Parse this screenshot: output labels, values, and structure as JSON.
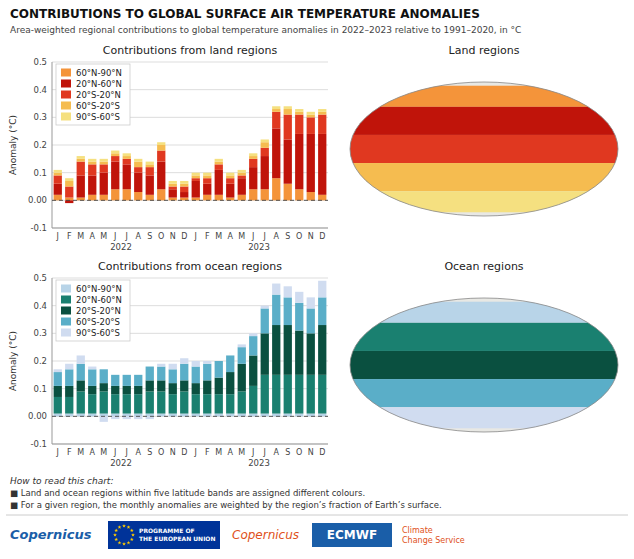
{
  "chart_data": [
    {
      "type": "bar",
      "stacked": true,
      "grid": true,
      "legend": "upper left",
      "title": "Contributions from land regions",
      "y_label": "Anomaly (°C)",
      "categories": [
        "J",
        "F",
        "M",
        "A",
        "M",
        "J",
        "J",
        "A",
        "S",
        "O",
        "N",
        "D",
        "J",
        "F",
        "M",
        "A",
        "M",
        "J",
        "J",
        "A",
        "S",
        "O",
        "N",
        "D"
      ],
      "series": [
        {
          "name": "60°N-90°N",
          "color": "#F4943A",
          "values": [
            0.02,
            0.01,
            0.01,
            0.02,
            0.02,
            0.04,
            0.04,
            0.03,
            0.02,
            0.04,
            0.01,
            0.01,
            0.01,
            0.02,
            0.02,
            0.01,
            0.02,
            0.04,
            0.04,
            0.08,
            0.06,
            0.04,
            0.03,
            0.02
          ]
        },
        {
          "name": "20°N-60°N",
          "color": "#C0140A",
          "values": [
            0.04,
            -0.01,
            0.08,
            0.07,
            0.08,
            0.1,
            0.09,
            0.07,
            0.07,
            0.1,
            0.03,
            0.02,
            0.06,
            0.04,
            0.09,
            0.05,
            0.06,
            0.08,
            0.12,
            0.18,
            0.16,
            0.2,
            0.21,
            0.22
          ]
        },
        {
          "name": "20°S-20°N",
          "color": "#E03820",
          "values": [
            0.03,
            0.04,
            0.05,
            0.04,
            0.03,
            0.02,
            0.02,
            0.02,
            0.03,
            0.04,
            0.01,
            0.02,
            0.01,
            0.02,
            0.02,
            0.02,
            0.01,
            0.03,
            0.03,
            0.06,
            0.09,
            0.07,
            0.06,
            0.07
          ]
        },
        {
          "name": "60°S-20°S",
          "color": "#F5BC50",
          "values": [
            0.01,
            0.02,
            0.01,
            0.01,
            0.01,
            0.01,
            0.01,
            0.02,
            0.01,
            0.02,
            0.01,
            0.01,
            0.01,
            0.01,
            0.01,
            0.01,
            0.01,
            0.01,
            0.02,
            0.01,
            0.02,
            0.01,
            0.01,
            0.01
          ]
        },
        {
          "name": "90°S-60°S",
          "color": "#F5E080",
          "values": [
            0.01,
            0.01,
            0.01,
            0.01,
            0.01,
            0.01,
            0.01,
            0.01,
            0.01,
            0.01,
            0.01,
            0.01,
            0.01,
            0.01,
            0.01,
            0.01,
            0.01,
            0.01,
            0.01,
            0.01,
            0.01,
            0.01,
            0.01,
            0.01
          ]
        }
      ],
      "ylim": [
        -0.1,
        0.5
      ],
      "yticks": [
        -0.1,
        {
          "value": 0.0,
          "label": "0.00"
        },
        0.1,
        0.2,
        0.3,
        0.4,
        0.5
      ],
      "annotations": [
        {
          "text": "2022"
        },
        {
          "text": "2023"
        },
        {
          "text": "Land regions"
        },
        {
          "text": "CONTRIBUTIONS TO GLOBAL SURFACE AIR TEMPERATURE ANOMALIES"
        },
        {
          "text": "Area-weighted regional contributions to global temperature anomalies in 2022–2023 relative to 1991–2020, in °C"
        },
        {
          "text": "How to read this chart:"
        },
        {
          "text": "■ Land and ocean regions within five latitude bands are assigned different colours."
        },
        {
          "text": "■ For a given region, the monthly anomalies are weighted by the region’s fraction of Earth’s surface."
        },
        {
          "text": "Copernicus"
        },
        {
          "text": "PROGRAMME OF\nTHE EUROPEAN UNION"
        },
        {
          "text": "Copernicus"
        },
        {
          "text": "ECMWF"
        },
        {
          "text": "Climate\nChange Service"
        }
      ]
    },
    {
      "type": "bar",
      "stacked": true,
      "grid": true,
      "legend": "upper left",
      "title": "Contributions from ocean regions",
      "y_label": "Anomaly (°C)",
      "categories": [
        "J",
        "F",
        "M",
        "A",
        "M",
        "J",
        "J",
        "A",
        "S",
        "O",
        "N",
        "D",
        "J",
        "F",
        "M",
        "A",
        "M",
        "J",
        "J",
        "A",
        "S",
        "O",
        "N",
        "D"
      ],
      "series": [
        {
          "name": "60°N-90°N",
          "color": "#B8D4E8",
          "values": [
            0.01,
            0.01,
            0.01,
            0.01,
            0.01,
            0.01,
            0.01,
            0.01,
            0.01,
            0.01,
            0.01,
            0.01,
            0.01,
            0.01,
            0.01,
            0.01,
            0.01,
            0.01,
            0.01,
            0.01,
            0.01,
            0.01,
            0.01,
            0.01
          ]
        },
        {
          "name": "20°N-60°N",
          "color": "#1A8070",
          "values": [
            0.06,
            0.06,
            0.08,
            0.07,
            0.08,
            0.07,
            0.07,
            0.07,
            0.08,
            0.08,
            0.07,
            0.08,
            0.07,
            0.07,
            0.07,
            0.07,
            0.08,
            0.1,
            0.14,
            0.14,
            0.14,
            0.14,
            0.14,
            0.14
          ]
        },
        {
          "name": "20°S-20°N",
          "color": "#0A5040",
          "values": [
            0.04,
            0.04,
            0.04,
            0.03,
            0.03,
            0.03,
            0.03,
            0.03,
            0.04,
            0.04,
            0.04,
            0.04,
            0.04,
            0.05,
            0.06,
            0.08,
            0.1,
            0.11,
            0.15,
            0.18,
            0.18,
            0.16,
            0.15,
            0.18
          ]
        },
        {
          "name": "60°S-20°S",
          "color": "#5AAEC8",
          "values": [
            0.05,
            0.06,
            0.06,
            0.06,
            0.05,
            0.04,
            0.04,
            0.04,
            0.05,
            0.05,
            0.05,
            0.06,
            0.06,
            0.06,
            0.06,
            0.06,
            0.06,
            0.07,
            0.09,
            0.11,
            0.1,
            0.1,
            0.09,
            0.1
          ]
        },
        {
          "name": "90°S-60°S",
          "color": "#D0DCF0",
          "values": [
            0.01,
            0.02,
            0.03,
            0.01,
            -0.02,
            -0.01,
            -0.01,
            -0.01,
            -0.01,
            0.01,
            0.02,
            0.02,
            0.02,
            0.01,
            0.0,
            0.0,
            0.01,
            0.01,
            0.01,
            0.04,
            0.04,
            0.04,
            0.04,
            0.06
          ]
        }
      ],
      "ylim": [
        -0.1,
        0.5
      ],
      "yticks": [
        -0.1,
        {
          "value": 0.0,
          "label": "0.00"
        },
        0.1,
        0.2,
        0.3,
        0.4,
        0.5
      ],
      "annotations": [
        {
          "text": "2022"
        },
        {
          "text": "2023"
        },
        {
          "text": "Ocean regions"
        }
      ]
    }
  ]
}
